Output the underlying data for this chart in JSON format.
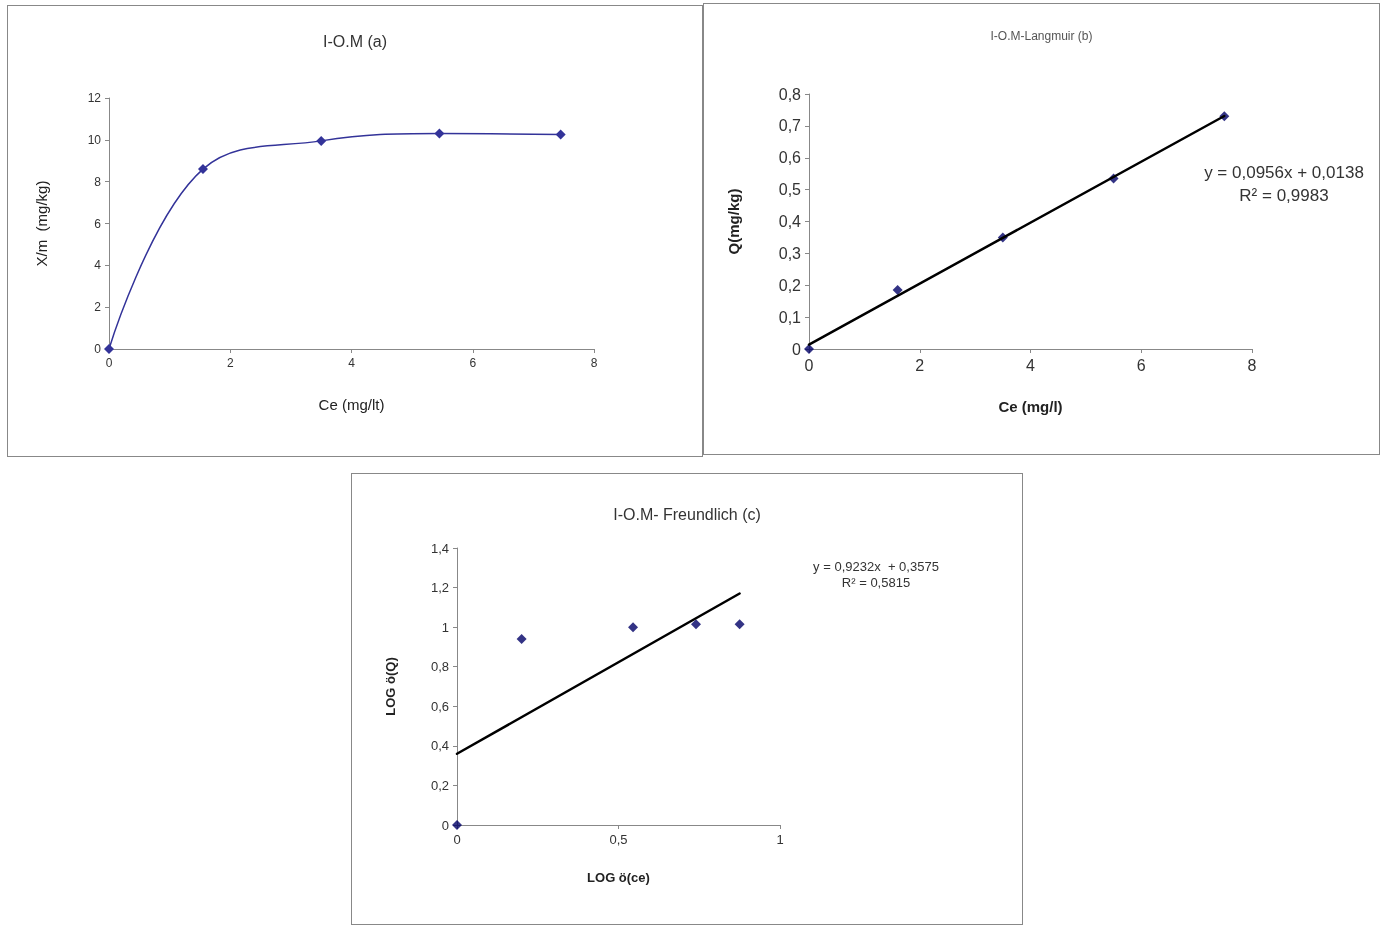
{
  "chart_data": [
    {
      "type": "line",
      "title": "I-O.M (a)",
      "xlabel": "Ce (mg/lt)",
      "ylabel": "X/m  (mg/kg)",
      "x": [
        0,
        1.55,
        3.5,
        5.45,
        7.45
      ],
      "series": [
        {
          "color": "#333399",
          "values": [
            0,
            8.6,
            9.95,
            10.3,
            10.25
          ]
        }
      ],
      "xlim": [
        0,
        8
      ],
      "xticks": [
        0,
        2,
        4,
        6,
        8
      ],
      "ylim": [
        0,
        12
      ],
      "yticks": [
        0,
        2,
        4,
        6,
        8,
        10,
        12
      ],
      "marker": "diamond",
      "grid": false
    },
    {
      "type": "scatter",
      "title": "I-O.M-Langmuir (b)",
      "xlabel": "Ce (mg/l)",
      "ylabel": "Q(mg/kg)",
      "x": [
        0,
        1.6,
        3.5,
        5.5,
        7.5
      ],
      "series": [
        {
          "color": "#000066",
          "values": [
            0,
            0.185,
            0.35,
            0.535,
            0.73
          ]
        },
        {
          "type": "line",
          "color": "#000000",
          "x": [
            0,
            7.5
          ],
          "values": [
            0.014,
            0.731
          ],
          "marker": "none"
        }
      ],
      "xlim": [
        0,
        8
      ],
      "xticks": [
        0,
        2,
        4,
        6,
        8
      ],
      "ylim": [
        0,
        0.8
      ],
      "yticks": [
        0,
        {
          "value": 0.1,
          "label": "0,1"
        },
        {
          "value": 0.2,
          "label": "0,2"
        },
        {
          "value": 0.3,
          "label": "0,3"
        },
        {
          "value": 0.4,
          "label": "0,4"
        },
        {
          "value": 0.5,
          "label": "0,5"
        },
        {
          "value": 0.6,
          "label": "0,6"
        },
        {
          "value": 0.7,
          "label": "0,7"
        },
        {
          "value": 0.8,
          "label": "0,8"
        }
      ],
      "annotations": [
        "y = 0,0956x + 0,0138",
        "R² = 0,9983"
      ],
      "marker": "diamond",
      "grid": false
    },
    {
      "type": "scatter",
      "title": "I-O.M- Freundlich (c)",
      "xlabel": "LOG ö(ce)",
      "ylabel": "LOG ö(Q)",
      "x": [
        0,
        0.2,
        0.545,
        0.74,
        0.875
      ],
      "series": [
        {
          "color": "#000066",
          "values": [
            0,
            0.94,
            1.0,
            1.015,
            1.015
          ]
        },
        {
          "type": "line",
          "color": "#000000",
          "x": [
            0,
            0.875
          ],
          "values": [
            0.36,
            1.17
          ],
          "marker": "none"
        }
      ],
      "xlim": [
        0,
        1
      ],
      "xticks": [
        0,
        {
          "value": 0.5,
          "label": "0,5"
        },
        1
      ],
      "ylim": [
        0,
        1.4
      ],
      "yticks": [
        0,
        {
          "value": 0.2,
          "label": "0,2"
        },
        {
          "value": 0.4,
          "label": "0,4"
        },
        {
          "value": 0.6,
          "label": "0,6"
        },
        {
          "value": 0.8,
          "label": "0,8"
        },
        1,
        {
          "value": 1.2,
          "label": "1,2"
        },
        {
          "value": 1.4,
          "label": "1,4"
        }
      ],
      "annotations": [
        "y = 0,9232x  + 0,3575",
        "R² = 0,5815"
      ],
      "marker": "diamond",
      "grid": false
    }
  ]
}
